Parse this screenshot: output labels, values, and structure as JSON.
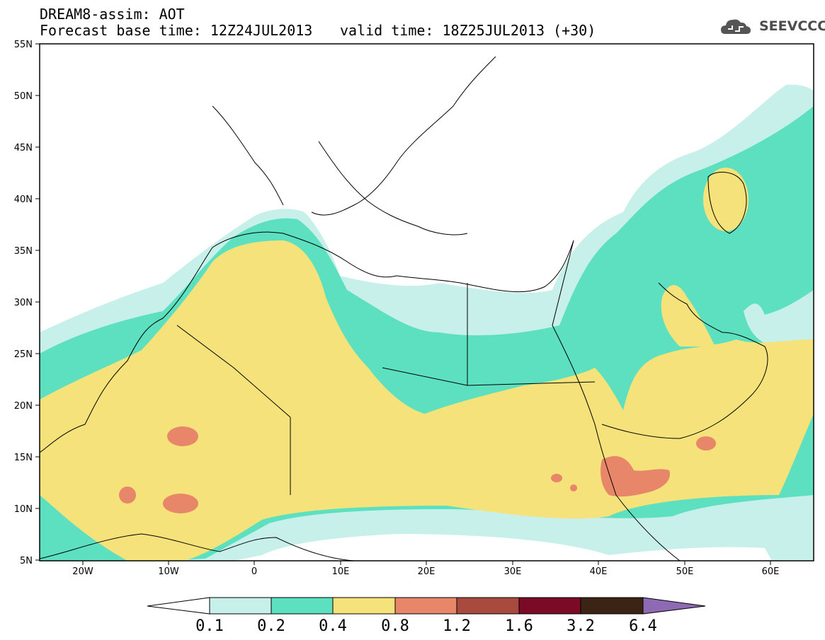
{
  "header": {
    "title": "DREAM8-assim: AOT",
    "forecast_base": "Forecast base time: 12Z24JUL2013",
    "valid_time": "valid time: 18Z25JUL2013 (+30)"
  },
  "logo": {
    "text": "SEEVCCC",
    "icon": "cloud-icon"
  },
  "map": {
    "lon_range": [
      -25,
      65
    ],
    "lat_range": [
      5,
      55
    ],
    "lat_labels": [
      "55N",
      "50N",
      "45N",
      "40N",
      "35N",
      "30N",
      "25N",
      "20N",
      "15N",
      "10N",
      "5N"
    ],
    "lon_labels": [
      "20W",
      "10W",
      "0",
      "10E",
      "20E",
      "30E",
      "40E",
      "50E",
      "60E"
    ]
  },
  "colorbar": {
    "levels": [
      "0.1",
      "0.2",
      "0.4",
      "0.8",
      "1.2",
      "1.6",
      "3.2",
      "6.4"
    ],
    "colors": {
      "below": "#ffffff",
      "0.1-0.2": "#c8f0ea",
      "0.2-0.4": "#5ce0c0",
      "0.4-0.8": "#f5e27a",
      "0.8-1.2": "#e8866a",
      "1.2-1.6": "#a84a3e",
      "1.6-3.2": "#7a0a26",
      "3.2-6.4": "#3c2414",
      "above": "#8e6ab4"
    }
  }
}
